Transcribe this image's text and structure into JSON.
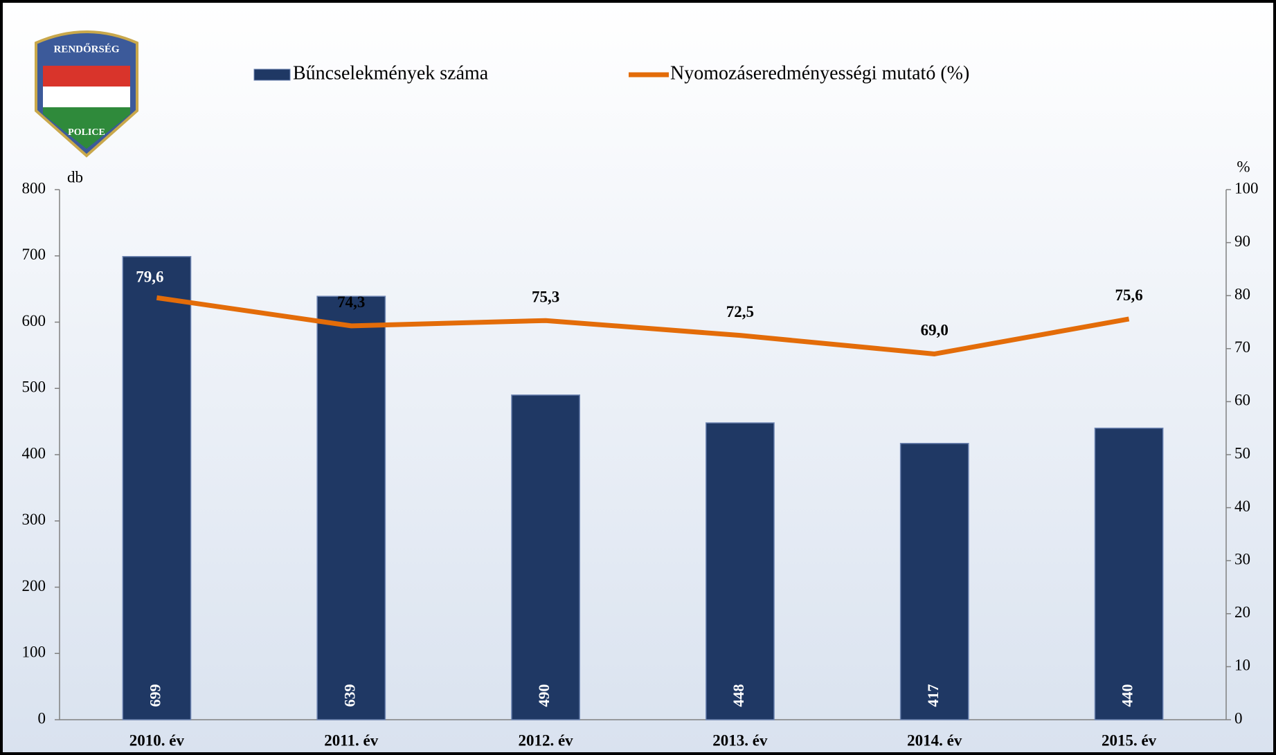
{
  "chart_data": {
    "type": "bar_line",
    "logo": {
      "top": "RENDŐRSÉG",
      "bottom": "POLICE"
    },
    "ylabel": "db",
    "y2label": "%",
    "categories": [
      "2010. év",
      "2011. év",
      "2012. év",
      "2013. év",
      "2014. év",
      "2015. év"
    ],
    "series": [
      {
        "name": "Bűncselekmények száma",
        "type": "bar",
        "color": "#1f3864",
        "values": [
          699,
          639,
          490,
          448,
          417,
          440
        ]
      },
      {
        "name": "Nyomozáseredményességi mutató (%)",
        "type": "line",
        "axis": "y2",
        "color": "#e36c09",
        "values": [
          79.6,
          74.3,
          75.3,
          72.5,
          69.0,
          75.6
        ],
        "value_labels": [
          "79,6",
          "74,3",
          "75,3",
          "72,5",
          "69,0",
          "75,6"
        ]
      }
    ],
    "ylim": [
      0,
      800
    ],
    "yticks": [
      0,
      100,
      200,
      300,
      400,
      500,
      600,
      700,
      800
    ],
    "y2lim": [
      0,
      100
    ],
    "y2ticks": [
      0,
      10,
      20,
      30,
      40,
      50,
      60,
      70,
      80,
      90,
      100
    ],
    "legend": "top"
  }
}
